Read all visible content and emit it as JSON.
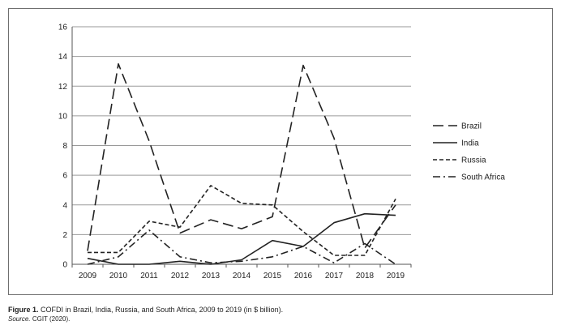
{
  "caption": {
    "figure_label": "Figure 1.",
    "text": "COFDI in Brazil, India, Russia, and South Africa, 2009 to 2019 (in $ billion).",
    "source_label": "Source.",
    "source_text": "CGIT (2020)."
  },
  "chart_data": {
    "type": "line",
    "title": "",
    "xlabel": "",
    "ylabel": "",
    "x": [
      "2009",
      "2010",
      "2011",
      "2012",
      "2013",
      "2014",
      "2015",
      "2016",
      "2017",
      "2018",
      "2019"
    ],
    "ylim": [
      0,
      16
    ],
    "yticks": [
      "0",
      "2",
      "4",
      "6",
      "8",
      "10",
      "12",
      "14",
      "16"
    ],
    "grid": true,
    "legend_position": "right",
    "series": [
      {
        "name": "Brazil",
        "style": "long-dash",
        "color": "#222222",
        "values": [
          0.9,
          13.5,
          8.3,
          2.1,
          3.0,
          2.4,
          3.2,
          13.4,
          8.5,
          1.1,
          4.0
        ]
      },
      {
        "name": "India",
        "style": "solid",
        "color": "#222222",
        "values": [
          0.4,
          0.0,
          0.0,
          0.2,
          0.0,
          0.3,
          1.6,
          1.2,
          2.8,
          3.4,
          3.3
        ]
      },
      {
        "name": "Russia",
        "style": "short-dash",
        "color": "#222222",
        "values": [
          0.8,
          0.8,
          2.9,
          2.5,
          5.3,
          4.1,
          4.0,
          2.2,
          0.6,
          0.6,
          4.4
        ]
      },
      {
        "name": "South Africa",
        "style": "dash-dot",
        "color": "#222222",
        "values": [
          0.0,
          0.5,
          2.3,
          0.5,
          0.1,
          0.2,
          0.5,
          1.2,
          0.1,
          1.4,
          0.0
        ]
      }
    ]
  }
}
